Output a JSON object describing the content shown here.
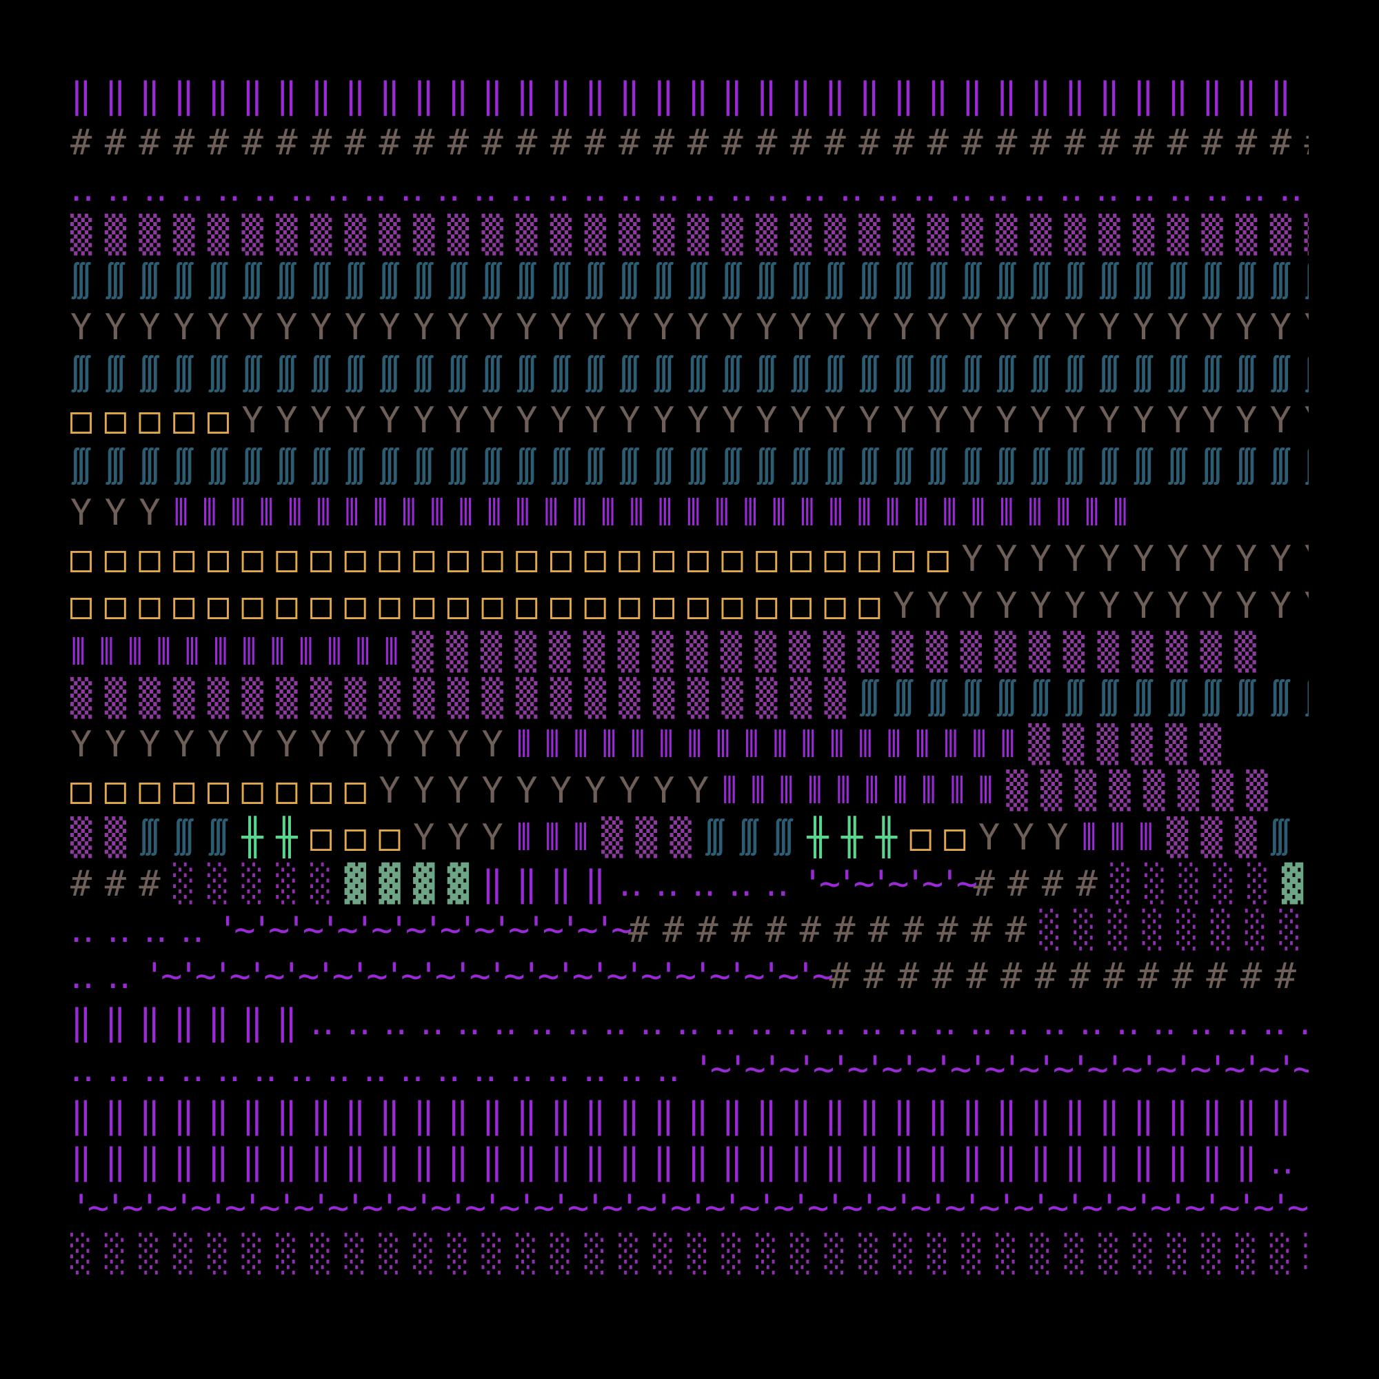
{
  "palette": {
    "bar": "#9a2ad6",
    "hash": "#6e5f59",
    "dots": "#9a2ad6",
    "shade": "#8c3a9e",
    "light": "#8f2fb0",
    "wave": "#2c5d73",
    "y": "#6e5f59",
    "box": "#e2a94c",
    "cross": "#5ad68e",
    "solid": "#6ea586",
    "tilde": "#9a2ad6"
  },
  "rows": [
    {
      "segments": [
        {
          "style": "bar",
          "text": "‖‖‖‖‖‖‖‖‖‖‖‖‖‖‖‖‖‖‖‖‖‖‖‖‖‖‖‖‖‖‖‖‖‖‖‖"
        }
      ]
    },
    {
      "segments": [
        {
          "style": "hash",
          "text": "#####################################"
        }
      ]
    },
    {
      "segments": [
        {
          "style": "dots",
          "text": "‥‥‥‥‥‥‥‥‥‥‥‥‥‥‥‥‥‥‥‥‥‥‥‥‥‥‥‥‥‥‥‥‥‥‥‥‥"
        }
      ]
    },
    {
      "segments": [
        {
          "style": "shade",
          "text": "▒▒▒▒▒▒▒▒▒▒▒▒▒▒▒▒▒▒▒▒▒▒▒▒▒▒▒▒▒▒▒▒▒▒▒▒▒"
        }
      ]
    },
    {
      "segments": [
        {
          "style": "wave",
          "text": "∭∭∭∭∭∭∭∭∭∭∭∭∭∭∭∭∭∭∭∭∭∭∭∭∭∭∭∭∭∭∭∭∭∭∭∭∭"
        }
      ]
    },
    {
      "segments": [
        {
          "style": "y",
          "text": "YYYYYYYYYYYYYYYYYYYYYYYYYYYYYYYYYYYYY"
        }
      ]
    },
    {
      "segments": [
        {
          "style": "wave",
          "text": "∭∭∭∭∭∭∭∭∭∭∭∭∭∭∭∭∭∭∭∭∭∭∭∭∭∭∭∭∭∭∭∭∭∭∭∭∭"
        }
      ]
    },
    {
      "segments": [
        {
          "style": "box",
          "text": "□□□□□"
        },
        {
          "style": "y",
          "text": "YYYYYYYYYYYYYYYYYYYYYYYYYYYYYYYY"
        }
      ]
    },
    {
      "segments": [
        {
          "style": "wave",
          "text": "∭∭∭∭∭∭∭∭∭∭∭∭∭∭∭∭∭∭∭∭∭∭∭∭∭∭∭∭∭∭∭∭∭∭∭∭∭"
        }
      ]
    },
    {
      "segments": [
        {
          "style": "y",
          "text": "YYY"
        },
        {
          "style": "bar",
          "text": "⦀⦀⦀⦀⦀⦀⦀⦀⦀⦀⦀⦀⦀⦀⦀⦀⦀⦀⦀⦀⦀⦀⦀⦀⦀⦀⦀⦀⦀⦀⦀⦀⦀⦀"
        }
      ]
    },
    {
      "segments": [
        {
          "style": "box",
          "text": "□□□□□□□□□□□□□□□□□□□□□□□□□□"
        },
        {
          "style": "y",
          "text": "YYYYYYYYYYY"
        }
      ]
    },
    {
      "segments": [
        {
          "style": "box",
          "text": "□□□□□□□□□□□□□□□□□□□□□□□□"
        },
        {
          "style": "y",
          "text": "YYYYYYYYYYYYY"
        }
      ]
    },
    {
      "segments": [
        {
          "style": "bar",
          "text": "⦀⦀⦀⦀⦀⦀⦀⦀⦀⦀⦀⦀"
        },
        {
          "style": "shade",
          "text": "▒▒▒▒▒▒▒▒▒▒▒▒▒▒▒▒▒▒▒▒▒▒▒▒▒"
        }
      ]
    },
    {
      "segments": [
        {
          "style": "shade",
          "text": "▒▒▒▒▒▒▒▒▒▒▒▒▒▒▒▒▒▒▒▒▒▒▒"
        },
        {
          "style": "wave",
          "text": "∭∭∭∭∭∭∭∭∭∭∭∭∭∭"
        }
      ]
    },
    {
      "segments": [
        {
          "style": "y",
          "text": "YYYYYYYYYYYYY"
        },
        {
          "style": "bar",
          "text": "⦀⦀⦀⦀⦀⦀⦀⦀⦀⦀⦀⦀⦀⦀⦀⦀⦀⦀"
        },
        {
          "style": "shade",
          "text": "▒▒▒▒▒▒"
        }
      ]
    },
    {
      "segments": [
        {
          "style": "box",
          "text": "□□□□□□□□□"
        },
        {
          "style": "y",
          "text": "YYYYYYYYYY"
        },
        {
          "style": "bar",
          "text": "⦀⦀⦀⦀⦀⦀⦀⦀⦀⦀"
        },
        {
          "style": "shade",
          "text": "▒▒▒▒▒▒▒▒"
        }
      ]
    },
    {
      "segments": [
        {
          "style": "shade",
          "text": "▒▒"
        },
        {
          "style": "wave",
          "text": "∭∭∭"
        },
        {
          "style": "cross",
          "text": "╫╫"
        },
        {
          "style": "box",
          "text": "□□□"
        },
        {
          "style": "y",
          "text": "YYY"
        },
        {
          "style": "bar",
          "text": "⦀⦀⦀"
        },
        {
          "style": "shade",
          "text": "▒▒▒"
        },
        {
          "style": "wave",
          "text": "∭∭∭"
        },
        {
          "style": "cross",
          "text": "╫╫╫"
        },
        {
          "style": "box",
          "text": "□□"
        },
        {
          "style": "y",
          "text": "YYY"
        },
        {
          "style": "bar",
          "text": "⦀⦀⦀"
        },
        {
          "style": "shade",
          "text": "▒▒▒"
        },
        {
          "style": "wave",
          "text": "∭"
        }
      ]
    },
    {
      "segments": [
        {
          "style": "hash",
          "text": "###"
        },
        {
          "style": "light",
          "text": "░░░░░"
        },
        {
          "style": "solid",
          "text": "▓▓▓▓"
        },
        {
          "style": "bar",
          "text": "‖‖‖‖"
        },
        {
          "style": "dots",
          "text": "‥‥‥‥‥"
        },
        {
          "style": "tilde",
          "text": "'~'~'~'~'~"
        },
        {
          "style": "hash",
          "text": "####"
        },
        {
          "style": "light",
          "text": "░░░░░"
        },
        {
          "style": "solid",
          "text": "▓▓"
        }
      ]
    },
    {
      "segments": [
        {
          "style": "dots",
          "text": "‥‥‥‥"
        },
        {
          "style": "tilde",
          "text": "'~'~'~'~'~'~'~'~'~'~'~'~"
        },
        {
          "style": "hash",
          "text": "############"
        },
        {
          "style": "light",
          "text": "░░░░░░░░░"
        }
      ]
    },
    {
      "segments": [
        {
          "style": "dots",
          "text": "‥‥"
        },
        {
          "style": "tilde",
          "text": "'~'~'~'~'~'~'~'~'~'~'~'~'~'~'~'~'~'~'~'~"
        },
        {
          "style": "hash",
          "text": "###############"
        }
      ]
    },
    {
      "segments": [
        {
          "style": "bar",
          "text": "‖‖‖‖‖‖‖"
        },
        {
          "style": "dots",
          "text": "‥‥‥‥‥‥‥‥‥‥‥‥‥‥‥‥‥‥‥‥‥‥‥‥‥‥‥‥"
        },
        {
          "style": "tilde",
          "text": "'~'~"
        }
      ]
    },
    {
      "segments": [
        {
          "style": "dots",
          "text": "‥‥‥‥‥‥‥‥‥‥‥‥‥‥‥‥‥"
        },
        {
          "style": "tilde",
          "text": "'~'~'~'~'~'~'~'~'~'~'~'~'~'~'~'~'~'~'~'~"
        }
      ]
    },
    {
      "segments": [
        {
          "style": "bar",
          "text": "‖‖‖‖‖‖‖‖‖‖‖‖‖‖‖‖‖‖‖‖‖‖‖‖‖‖‖‖‖‖‖‖‖‖‖‖"
        }
      ]
    },
    {
      "segments": [
        {
          "style": "bar",
          "text": "‖‖‖‖‖‖‖‖‖‖‖‖‖‖‖‖‖‖‖‖‖‖‖‖‖‖‖‖‖‖‖‖‖‖‖"
        },
        {
          "style": "dots",
          "text": "‥‥"
        }
      ]
    },
    {
      "segments": [
        {
          "style": "tilde",
          "text": "'~'~'~'~'~'~'~'~'~'~'~'~'~'~'~'~'~'~'~'~'~'~'~'~'~'~'~'~'~'~'~'~'~'~'~'~'~"
        }
      ]
    },
    {
      "segments": [
        {
          "style": "light",
          "text": "░░░░░░░░░░░░░░░░░░░░░░░░░░░░░░░░░░░░░"
        }
      ]
    }
  ]
}
